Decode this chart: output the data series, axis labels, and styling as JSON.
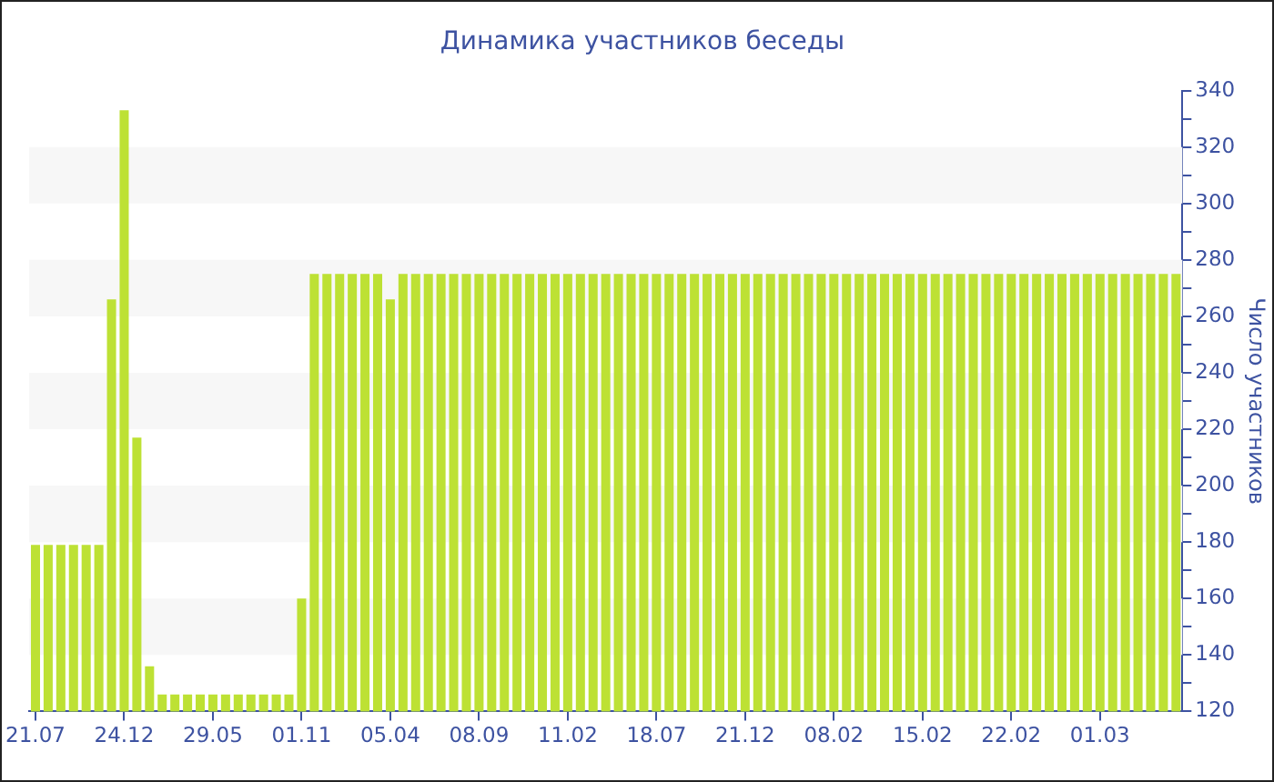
{
  "chart_data": {
    "type": "bar",
    "title": "Динамика участников беседы",
    "ylabel": "Число участников",
    "categories": [
      "21.07",
      null,
      null,
      null,
      null,
      null,
      null,
      "24.12",
      null,
      null,
      null,
      null,
      null,
      null,
      "29.05",
      null,
      null,
      null,
      null,
      null,
      null,
      "01.11",
      null,
      null,
      null,
      null,
      null,
      null,
      "05.04",
      null,
      null,
      null,
      null,
      null,
      null,
      "08.09",
      null,
      null,
      null,
      null,
      null,
      null,
      "11.02",
      null,
      null,
      null,
      null,
      null,
      null,
      "18.07",
      null,
      null,
      null,
      null,
      null,
      null,
      "21.12",
      null,
      null,
      null,
      null,
      null,
      null,
      "08.02",
      null,
      null,
      null,
      null,
      null,
      null,
      "15.02",
      null,
      null,
      null,
      null,
      null,
      null,
      "22.02",
      null,
      null,
      null,
      null,
      null,
      null,
      "01.03",
      null,
      null,
      null,
      null,
      null,
      null
    ],
    "values": [
      179,
      179,
      179,
      179,
      179,
      179,
      266,
      333,
      217,
      136,
      126,
      126,
      126,
      126,
      126,
      126,
      126,
      126,
      126,
      126,
      126,
      160,
      275,
      275,
      275,
      275,
      275,
      275,
      266,
      275,
      275,
      275,
      275,
      275,
      275,
      275,
      275,
      275,
      275,
      275,
      275,
      275,
      275,
      275,
      275,
      275,
      275,
      275,
      275,
      275,
      275,
      275,
      275,
      275,
      275,
      275,
      275,
      275,
      275,
      275,
      275,
      275,
      275,
      275,
      275,
      275,
      275,
      275,
      275,
      275,
      275,
      275,
      275,
      275,
      275,
      275,
      275,
      275,
      275,
      275,
      275,
      275,
      275,
      275,
      275,
      275,
      275,
      275,
      275,
      275,
      275
    ],
    "color": "#bde134",
    "ylim": [
      120,
      340
    ],
    "yticks": [
      120,
      {
        "value": 130,
        "label": null
      },
      140,
      {
        "value": 150,
        "label": null
      },
      160,
      {
        "value": 170,
        "label": null
      },
      180,
      {
        "value": 190,
        "label": null
      },
      200,
      {
        "value": 210,
        "label": null
      },
      220,
      {
        "value": 230,
        "label": null
      },
      240,
      {
        "value": 250,
        "label": null
      },
      260,
      {
        "value": 270,
        "label": null
      },
      280,
      {
        "value": 290,
        "label": null
      },
      300,
      {
        "value": 310,
        "label": null
      },
      320,
      {
        "value": 330,
        "label": null
      },
      340
    ],
    "bands": [
      {
        "axis": "y",
        "from": 140,
        "to": 160,
        "color": "#f7f7f7"
      },
      {
        "axis": "y",
        "from": 180,
        "to": 200,
        "color": "#f7f7f7"
      },
      {
        "axis": "y",
        "from": 220,
        "to": 240,
        "color": "#f7f7f7"
      },
      {
        "axis": "y",
        "from": 260,
        "to": 280,
        "color": "#f7f7f7"
      },
      {
        "axis": "y",
        "from": 300,
        "to": 320,
        "color": "#f7f7f7"
      }
    ]
  }
}
